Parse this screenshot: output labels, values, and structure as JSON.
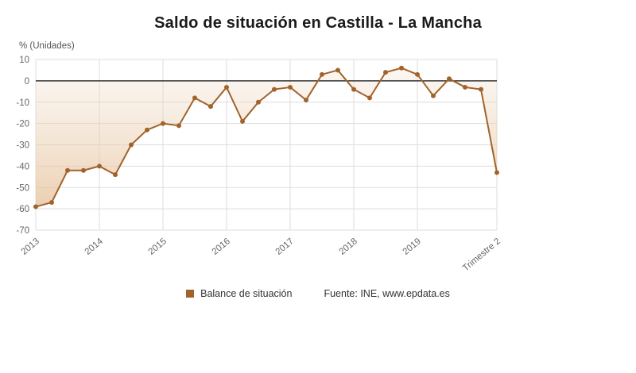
{
  "title": "Saldo de situación en Castilla - La Mancha",
  "legend": {
    "label": "Balance de situación"
  },
  "source": "Fuente: INE, www.epdata.es",
  "colors": {
    "line": "#A2632B",
    "marker": "#A2632B",
    "fill_top": "rgba(240,221,201,0.25)",
    "fill_bottom": "rgba(229,191,150,0.75)",
    "grid": "#DDDDDD",
    "zero_line": "#333333",
    "axis_text": "#666666"
  },
  "chart_data": {
    "type": "line",
    "title": "Saldo de situación en Castilla - La Mancha",
    "xlabel": "",
    "ylabel": "% (Unidades)",
    "ylim": [
      -70,
      10
    ],
    "ytick_step": 10,
    "grid": true,
    "legend_position": "bottom",
    "threshold": 0,
    "x_description": "Quarterly values from 2013 Q1 to 2020 Q2 (Trimestre 2)",
    "xtick_indices": [
      0,
      4,
      8,
      12,
      16,
      20,
      24,
      29
    ],
    "xtick_labels": [
      "2013",
      "2014",
      "2015",
      "2016",
      "2017",
      "2018",
      "2019",
      "Trimestre 2"
    ],
    "series": [
      {
        "name": "Balance de situación",
        "values": [
          -59,
          -57,
          -42,
          -42,
          -40,
          -44,
          -30,
          -23,
          -20,
          -21,
          -8,
          -12,
          -3,
          -19,
          -10,
          -4,
          -3,
          -9,
          3,
          5,
          -4,
          -8,
          4,
          6,
          3,
          -7,
          1,
          -3,
          -4,
          -43
        ]
      }
    ]
  }
}
